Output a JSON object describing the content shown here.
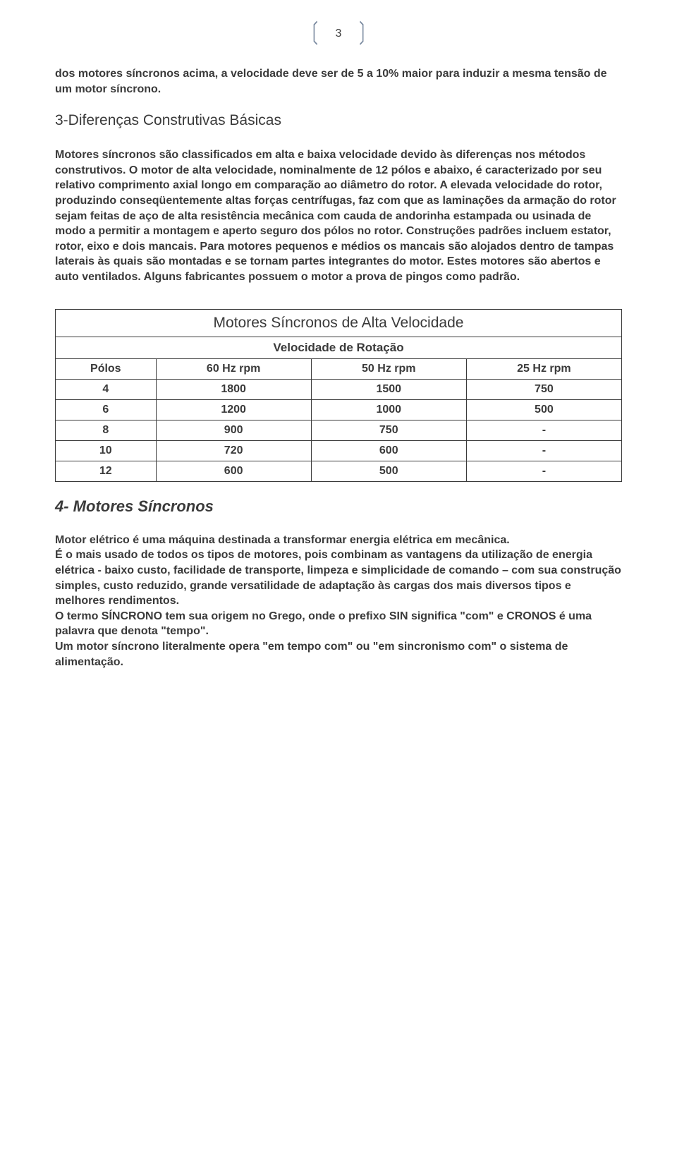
{
  "page_number": "3",
  "p1": "dos motores síncronos acima, a velocidade deve ser de 5 a 10% maior para induzir a mesma tensão de um motor síncrono.",
  "h1": "3-Diferenças Construtivas Básicas",
  "p2": "Motores síncronos são classificados em alta e baixa velocidade devido às diferenças nos métodos construtivos. O motor de alta velocidade, nominalmente de 12 pólos e abaixo, é caracterizado por seu relativo comprimento axial longo em comparação ao diâmetro do rotor. A elevada velocidade do rotor, produzindo conseqüentemente altas forças centrífugas, faz com que as laminações da armação do rotor sejam feitas de aço de alta resistência mecânica com cauda de andorinha estampada ou usinada de modo a permitir a montagem e aperto seguro dos pólos no rotor. Construções padrões incluem estator, rotor, eixo e dois mancais. Para motores pequenos e médios os mancais são alojados dentro de tampas laterais às quais são montadas e se tornam partes integrantes do motor. Estes motores são abertos e auto ventilados. Alguns fabricantes possuem o motor a prova de pingos como padrão.",
  "table": {
    "title": "Motores Síncronos de Alta Velocidade",
    "subtitle": "Velocidade de Rotação",
    "headers": [
      "Pólos",
      "60 Hz rpm",
      "50 Hz rpm",
      "25 Hz rpm"
    ],
    "rows": [
      [
        "4",
        "1800",
        "1500",
        "750"
      ],
      [
        "6",
        "1200",
        "1000",
        "500"
      ],
      [
        "8",
        "900",
        "750",
        "-"
      ],
      [
        "10",
        "720",
        "600",
        "-"
      ],
      [
        "12",
        "600",
        "500",
        "-"
      ]
    ]
  },
  "h2": "4- Motores Síncronos",
  "p3": "Motor elétrico é uma máquina destinada a transformar energia elétrica em mecânica.",
  "p4": "É o mais usado de todos os tipos de motores, pois combinam as vantagens da utilização de energia elétrica - baixo custo, facilidade de transporte, limpeza e simplicidade de comando – com sua construção simples, custo reduzido, grande versatilidade de adaptação às cargas dos mais diversos tipos e melhores rendimentos.",
  "p5": "O termo SÍNCRONO tem sua origem no Grego, onde o prefixo SIN significa \"com\" e CRONOS é uma palavra que denota \"tempo\".",
  "p6": "Um motor síncrono literalmente opera \"em tempo com\" ou \"em sincronismo com\" o sistema de alimentação."
}
